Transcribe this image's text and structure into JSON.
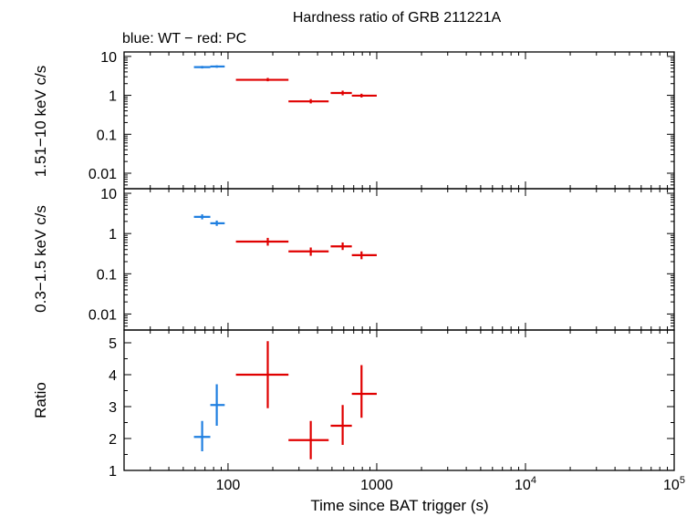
{
  "title": "Hardness ratio of GRB 211221A",
  "subtitle": "blue: WT − red: PC",
  "xlabel": "Time since BAT trigger (s)",
  "colors": {
    "wt": "#1f7fe0",
    "pc": "#e00000",
    "axis": "#000000"
  },
  "chart_data": [
    {
      "type": "scatter",
      "panel": "hard",
      "ylabel": "1.51−10 keV c/s",
      "xscale": "log",
      "yscale": "log",
      "xlim": [
        20,
        100000
      ],
      "ylim": [
        0.004,
        13
      ],
      "yticks": [
        {
          "v": 10,
          "label": "10"
        },
        {
          "v": 1,
          "label": "1"
        },
        {
          "v": 0.1,
          "label": "0.1"
        },
        {
          "v": 0.01,
          "label": "0.01"
        }
      ],
      "series": [
        {
          "mode": "WT",
          "points": [
            {
              "x": 67,
              "xlo": 59,
              "xhi": 76,
              "y": 5.3,
              "ylo": 4.9,
              "yhi": 5.7
            },
            {
              "x": 84,
              "xlo": 76,
              "xhi": 95,
              "y": 5.5,
              "ylo": 5.1,
              "yhi": 5.9
            }
          ]
        },
        {
          "mode": "PC",
          "points": [
            {
              "x": 185,
              "xlo": 113,
              "xhi": 255,
              "y": 2.5,
              "ylo": 2.3,
              "yhi": 2.8
            },
            {
              "x": 360,
              "xlo": 255,
              "xhi": 475,
              "y": 0.7,
              "ylo": 0.62,
              "yhi": 0.8
            },
            {
              "x": 590,
              "xlo": 490,
              "xhi": 680,
              "y": 1.15,
              "ylo": 1.0,
              "yhi": 1.32
            },
            {
              "x": 790,
              "xlo": 680,
              "xhi": 1000,
              "y": 0.98,
              "ylo": 0.88,
              "yhi": 1.1
            }
          ]
        }
      ]
    },
    {
      "type": "scatter",
      "panel": "soft",
      "ylabel": "0.3−1.5 keV c/s",
      "xscale": "log",
      "yscale": "log",
      "xlim": [
        20,
        100000
      ],
      "ylim": [
        0.004,
        13
      ],
      "yticks": [
        {
          "v": 10,
          "label": "10"
        },
        {
          "v": 1,
          "label": "1"
        },
        {
          "v": 0.1,
          "label": "0.1"
        },
        {
          "v": 0.01,
          "label": "0.01"
        }
      ],
      "series": [
        {
          "mode": "WT",
          "points": [
            {
              "x": 67,
              "xlo": 59,
              "xhi": 76,
              "y": 2.6,
              "ylo": 2.25,
              "yhi": 3.0
            },
            {
              "x": 84,
              "xlo": 76,
              "xhi": 95,
              "y": 1.8,
              "ylo": 1.55,
              "yhi": 2.1
            }
          ]
        },
        {
          "mode": "PC",
          "points": [
            {
              "x": 185,
              "xlo": 113,
              "xhi": 255,
              "y": 0.63,
              "ylo": 0.5,
              "yhi": 0.78
            },
            {
              "x": 360,
              "xlo": 255,
              "xhi": 475,
              "y": 0.36,
              "ylo": 0.28,
              "yhi": 0.45
            },
            {
              "x": 590,
              "xlo": 490,
              "xhi": 680,
              "y": 0.48,
              "ylo": 0.39,
              "yhi": 0.6
            },
            {
              "x": 790,
              "xlo": 680,
              "xhi": 1000,
              "y": 0.29,
              "ylo": 0.23,
              "yhi": 0.36
            }
          ]
        }
      ]
    },
    {
      "type": "scatter",
      "panel": "ratio",
      "ylabel": "Ratio",
      "xscale": "log",
      "yscale": "linear",
      "xlim": [
        20,
        100000
      ],
      "ylim": [
        1,
        5.4
      ],
      "yticks": [
        {
          "v": 1,
          "label": "1"
        },
        {
          "v": 2,
          "label": "2"
        },
        {
          "v": 3,
          "label": "3"
        },
        {
          "v": 4,
          "label": "4"
        },
        {
          "v": 5,
          "label": "5"
        }
      ],
      "series": [
        {
          "mode": "WT",
          "points": [
            {
              "x": 67,
              "xlo": 59,
              "xhi": 76,
              "y": 2.05,
              "ylo": 1.6,
              "yhi": 2.55
            },
            {
              "x": 84,
              "xlo": 76,
              "xhi": 95,
              "y": 3.05,
              "ylo": 2.4,
              "yhi": 3.7
            }
          ]
        },
        {
          "mode": "PC",
          "points": [
            {
              "x": 185,
              "xlo": 113,
              "xhi": 255,
              "y": 4.0,
              "ylo": 2.95,
              "yhi": 5.05
            },
            {
              "x": 360,
              "xlo": 255,
              "xhi": 475,
              "y": 1.95,
              "ylo": 1.35,
              "yhi": 2.55
            },
            {
              "x": 590,
              "xlo": 490,
              "xhi": 680,
              "y": 2.4,
              "ylo": 1.8,
              "yhi": 3.05
            },
            {
              "x": 790,
              "xlo": 680,
              "xhi": 1000,
              "y": 3.4,
              "ylo": 2.65,
              "yhi": 4.3
            }
          ]
        }
      ]
    }
  ],
  "xticks": [
    {
      "v": 100,
      "base": "100",
      "exp": ""
    },
    {
      "v": 1000,
      "base": "1000",
      "exp": ""
    },
    {
      "v": 10000,
      "base": "10",
      "exp": "4"
    },
    {
      "v": 100000,
      "base": "10",
      "exp": "5"
    }
  ]
}
